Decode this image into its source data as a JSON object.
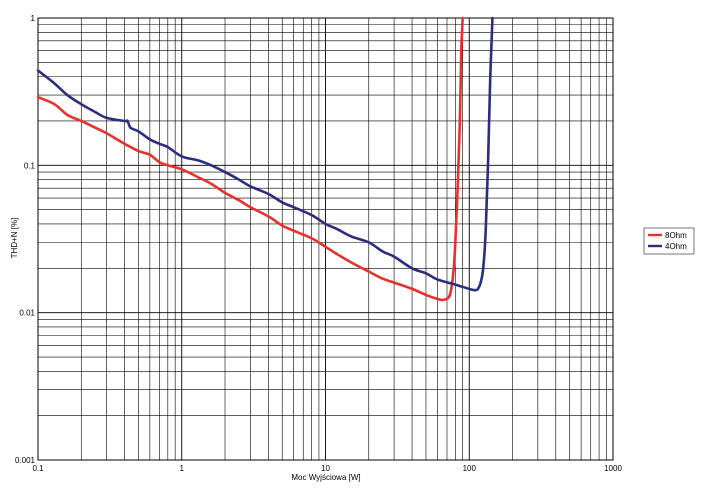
{
  "chart_data": {
    "type": "line",
    "title": "",
    "xlabel": "Moc Wyjściowa [W]",
    "ylabel": "THD+N [%]",
    "xscale": "log",
    "yscale": "log",
    "xlim": [
      0.1,
      1000
    ],
    "ylim": [
      0.001,
      1
    ],
    "grid": true,
    "legend_position": "right",
    "x_ticks": [
      {
        "value": 0.1,
        "label": "0.1"
      },
      {
        "value": 1,
        "label": "1"
      },
      {
        "value": 10,
        "label": "10"
      },
      {
        "value": 100,
        "label": "100"
      },
      {
        "value": 1000,
        "label": "1000"
      }
    ],
    "y_ticks": [
      {
        "value": 1,
        "label": "1"
      },
      {
        "value": 0.1,
        "label": "0.1"
      },
      {
        "value": 0.01,
        "label": "0.01"
      },
      {
        "value": 0.001,
        "label": "0.001"
      }
    ],
    "series": [
      {
        "name": "8Ohm",
        "color": "#e8312a",
        "x": [
          0.1,
          0.13,
          0.16,
          0.2,
          0.25,
          0.3,
          0.4,
          0.5,
          0.6,
          0.7,
          0.8,
          1,
          1.3,
          1.6,
          2,
          2.5,
          3,
          4,
          5,
          6,
          8,
          10,
          12,
          15,
          20,
          25,
          30,
          40,
          50,
          60,
          66,
          72,
          75,
          78,
          80,
          83,
          86,
          88,
          90
        ],
        "y": [
          0.29,
          0.26,
          0.22,
          0.2,
          0.18,
          0.165,
          0.14,
          0.125,
          0.118,
          0.105,
          0.1,
          0.094,
          0.083,
          0.075,
          0.065,
          0.058,
          0.052,
          0.045,
          0.039,
          0.036,
          0.032,
          0.028,
          0.025,
          0.022,
          0.019,
          0.017,
          0.016,
          0.0145,
          0.0132,
          0.0124,
          0.0122,
          0.0127,
          0.0145,
          0.02,
          0.03,
          0.07,
          0.2,
          0.6,
          1.0
        ]
      },
      {
        "name": "4Ohm",
        "color": "#2b2d7e",
        "x": [
          0.1,
          0.13,
          0.16,
          0.2,
          0.25,
          0.3,
          0.4,
          0.42,
          0.44,
          0.5,
          0.6,
          0.7,
          0.8,
          1,
          1.3,
          1.6,
          2,
          2.5,
          3,
          4,
          5,
          6,
          8,
          10,
          12,
          15,
          20,
          25,
          30,
          40,
          50,
          60,
          80,
          100,
          110,
          115,
          120,
          125,
          130,
          135,
          140,
          145
        ],
        "y": [
          0.44,
          0.36,
          0.3,
          0.26,
          0.23,
          0.21,
          0.2,
          0.2,
          0.18,
          0.17,
          0.15,
          0.14,
          0.133,
          0.115,
          0.108,
          0.1,
          0.09,
          0.08,
          0.072,
          0.064,
          0.056,
          0.052,
          0.046,
          0.04,
          0.037,
          0.033,
          0.03,
          0.026,
          0.024,
          0.02,
          0.0185,
          0.0168,
          0.0155,
          0.0145,
          0.0142,
          0.0145,
          0.016,
          0.02,
          0.035,
          0.1,
          0.4,
          1.0
        ]
      }
    ]
  }
}
